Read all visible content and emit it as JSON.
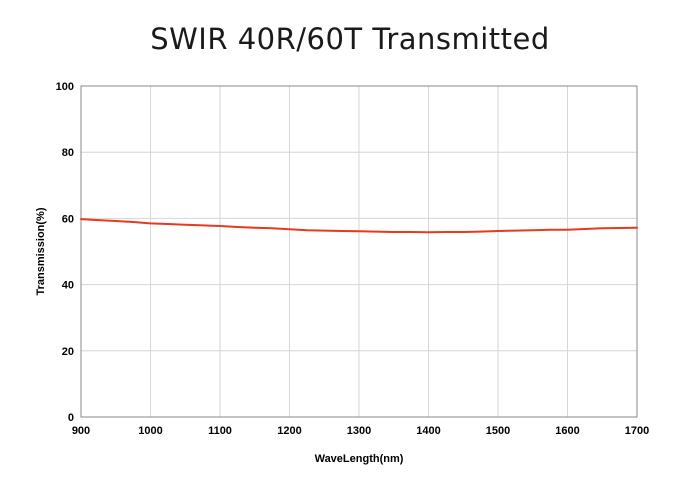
{
  "chart_data": {
    "type": "line",
    "title": "SWIR 40R/60T Transmitted",
    "xlabel": "WaveLength(nm)",
    "ylabel": "Transmission(%)",
    "xlim": [
      900,
      1700
    ],
    "ylim": [
      0,
      100
    ],
    "xticks": [
      900,
      1000,
      1100,
      1200,
      1300,
      1400,
      1500,
      1600,
      1700
    ],
    "yticks": [
      0,
      20,
      40,
      60,
      80,
      100
    ],
    "grid": true,
    "legend": "none",
    "series": [
      {
        "color": "#e8391f",
        "x": [
          900,
          925,
          950,
          975,
          1000,
          1025,
          1050,
          1075,
          1100,
          1125,
          1150,
          1175,
          1200,
          1225,
          1250,
          1275,
          1300,
          1325,
          1350,
          1375,
          1400,
          1425,
          1450,
          1475,
          1500,
          1525,
          1550,
          1575,
          1600,
          1625,
          1650,
          1675,
          1700
        ],
        "y": [
          59.8,
          59.5,
          59.2,
          58.9,
          58.5,
          58.3,
          58.1,
          57.9,
          57.7,
          57.4,
          57.2,
          57.0,
          56.7,
          56.4,
          56.3,
          56.2,
          56.1,
          56.0,
          55.9,
          55.9,
          55.8,
          55.9,
          55.9,
          56.0,
          56.2,
          56.3,
          56.4,
          56.6,
          56.6,
          56.8,
          57.0,
          57.1,
          57.2
        ]
      }
    ]
  }
}
